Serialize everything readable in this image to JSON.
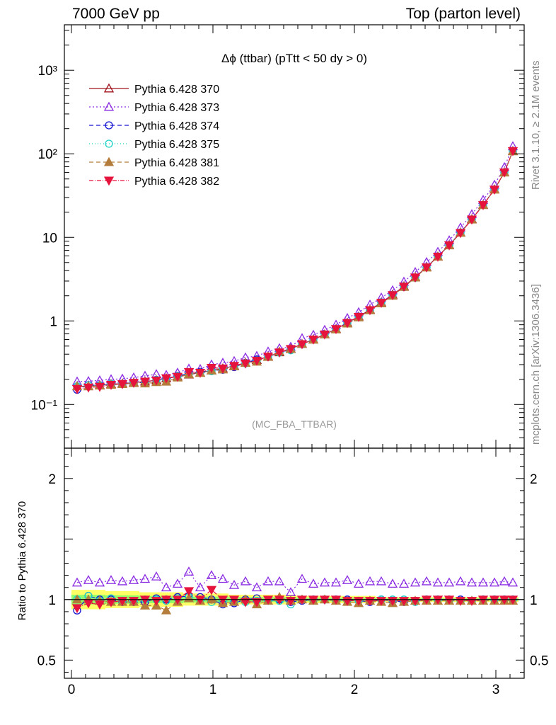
{
  "header": {
    "left": "7000 GeV pp",
    "right": "Top (parton level)"
  },
  "side_labels": {
    "rivet": "Rivet 3.1.10, ≥ 2.1M events",
    "source": "mcplots.cern.ch [arXiv:1306.3436]"
  },
  "colors": {
    "s370": "#a0141e",
    "s373": "#8a2be2",
    "s374": "#1414d2",
    "s375": "#1ed2c8",
    "s381": "#b47d3c",
    "s382": "#e6143c",
    "band_outer": "#ffff66",
    "band_inner": "#99ff66"
  },
  "chart_data": [
    {
      "type": "line",
      "title": "Δϕ (ttbar) (pTtt < 50 dy > 0)",
      "watermark": "(MC_FBA_TTBAR)",
      "yscale": "log",
      "xlim": [
        -0.05,
        3.2
      ],
      "ylim": [
        0.03,
        3500
      ],
      "x_ticks": [
        "0",
        "1",
        "2",
        "3"
      ],
      "y_ticks": [
        "10⁻¹",
        "1",
        "10",
        "10²",
        "10³"
      ],
      "legend_position": "top-left",
      "x": [
        0.04,
        0.12,
        0.2,
        0.28,
        0.36,
        0.44,
        0.52,
        0.6,
        0.67,
        0.75,
        0.83,
        0.91,
        0.99,
        1.07,
        1.15,
        1.23,
        1.31,
        1.39,
        1.47,
        1.55,
        1.63,
        1.71,
        1.79,
        1.87,
        1.95,
        2.03,
        2.11,
        2.19,
        2.27,
        2.35,
        2.43,
        2.51,
        2.59,
        2.67,
        2.75,
        2.83,
        2.91,
        2.99,
        3.06,
        3.12
      ],
      "series": [
        {
          "name": "Pythia 6.428 370",
          "key": "s370",
          "marker": "triangle-open",
          "dash": "",
          "values": [
            0.165,
            0.165,
            0.17,
            0.175,
            0.178,
            0.183,
            0.188,
            0.195,
            0.205,
            0.215,
            0.228,
            0.24,
            0.255,
            0.27,
            0.29,
            0.315,
            0.34,
            0.375,
            0.42,
            0.465,
            0.53,
            0.6,
            0.69,
            0.8,
            0.95,
            1.13,
            1.36,
            1.66,
            2.06,
            2.6,
            3.35,
            4.4,
            5.9,
            8.1,
            11.4,
            16.5,
            24.5,
            37.5,
            60.0,
            108
          ]
        },
        {
          "name": "Pythia 6.428 373",
          "key": "s373",
          "marker": "triangle-open",
          "dash": "2,3",
          "values": [
            0.188,
            0.19,
            0.194,
            0.2,
            0.203,
            0.21,
            0.22,
            0.23,
            0.225,
            0.24,
            0.268,
            0.265,
            0.3,
            0.315,
            0.33,
            0.365,
            0.38,
            0.43,
            0.47,
            0.49,
            0.62,
            0.68,
            0.78,
            0.9,
            1.08,
            1.27,
            1.56,
            1.9,
            2.32,
            2.94,
            3.84,
            5.05,
            6.7,
            9.2,
            13.1,
            18.9,
            28.0,
            42.5,
            69.0,
            123
          ]
        },
        {
          "name": "Pythia 6.428 374",
          "key": "s374",
          "marker": "circle-open",
          "dash": "6,4",
          "values": [
            0.15,
            0.17,
            0.17,
            0.175,
            0.175,
            0.18,
            0.185,
            0.197,
            0.205,
            0.22,
            0.235,
            0.245,
            0.255,
            0.26,
            0.28,
            0.315,
            0.345,
            0.37,
            0.42,
            0.455,
            0.525,
            0.6,
            0.69,
            0.8,
            0.95,
            1.12,
            1.34,
            1.67,
            2.05,
            2.54,
            3.3,
            4.4,
            5.9,
            8.1,
            11.4,
            16.4,
            24.4,
            37.4,
            60.0,
            108
          ]
        },
        {
          "name": "Pythia 6.428 375",
          "key": "s375",
          "marker": "circle-open",
          "dash": "1,3",
          "values": [
            0.165,
            0.17,
            0.168,
            0.177,
            0.176,
            0.182,
            0.188,
            0.196,
            0.203,
            0.218,
            0.232,
            0.24,
            0.25,
            0.268,
            0.285,
            0.31,
            0.337,
            0.372,
            0.418,
            0.445,
            0.528,
            0.595,
            0.688,
            0.795,
            0.945,
            1.12,
            1.35,
            1.66,
            2.05,
            2.6,
            3.28,
            4.38,
            5.88,
            8.05,
            11.3,
            16.4,
            24.4,
            37.4,
            60.0,
            108
          ]
        },
        {
          "name": "Pythia 6.428 381",
          "key": "s381",
          "marker": "triangle-filled",
          "dash": "6,4",
          "values": [
            0.165,
            0.165,
            0.168,
            0.172,
            0.175,
            0.18,
            0.178,
            0.185,
            0.187,
            0.21,
            0.23,
            0.238,
            0.255,
            0.262,
            0.285,
            0.315,
            0.325,
            0.37,
            0.43,
            0.46,
            0.53,
            0.595,
            0.69,
            0.79,
            0.93,
            1.1,
            1.34,
            1.62,
            2.0,
            2.55,
            3.3,
            4.35,
            5.85,
            8.0,
            11.3,
            16.3,
            24.3,
            37.2,
            59.5,
            107
          ]
        },
        {
          "name": "Pythia 6.428 382",
          "key": "s382",
          "marker": "triangle-down-filled",
          "dash": "6,2,1,2",
          "values": [
            0.153,
            0.16,
            0.163,
            0.172,
            0.176,
            0.182,
            0.188,
            0.194,
            0.206,
            0.215,
            0.245,
            0.24,
            0.275,
            0.27,
            0.29,
            0.31,
            0.335,
            0.375,
            0.42,
            0.462,
            0.528,
            0.6,
            0.69,
            0.8,
            0.945,
            1.12,
            1.35,
            1.65,
            2.04,
            2.58,
            3.32,
            4.38,
            5.88,
            8.05,
            11.3,
            16.4,
            24.4,
            37.4,
            60.0,
            108
          ]
        }
      ]
    },
    {
      "type": "line",
      "ylabel": "Ratio to Pythia 6.428 370",
      "xlim": [
        -0.05,
        3.2
      ],
      "ylim": [
        0.35,
        2.25
      ],
      "x_ticks": [
        "0",
        "1",
        "2",
        "3"
      ],
      "y_ticks": [
        "0.5",
        "1",
        "2"
      ],
      "x": [
        0.04,
        0.12,
        0.2,
        0.28,
        0.36,
        0.44,
        0.52,
        0.6,
        0.67,
        0.75,
        0.83,
        0.91,
        0.99,
        1.07,
        1.15,
        1.23,
        1.31,
        1.39,
        1.47,
        1.55,
        1.63,
        1.71,
        1.79,
        1.87,
        1.95,
        2.03,
        2.11,
        2.19,
        2.27,
        2.35,
        2.43,
        2.51,
        2.59,
        2.67,
        2.75,
        2.83,
        2.91,
        2.99,
        3.06,
        3.12
      ],
      "band_outer_halfwidth": [
        0.08,
        0.08,
        0.08,
        0.07,
        0.07,
        0.07,
        0.06,
        0.06,
        0.06,
        0.06,
        0.05,
        0.05,
        0.05,
        0.05,
        0.04,
        0.04,
        0.04,
        0.04,
        0.04,
        0.04,
        0.03,
        0.03,
        0.03,
        0.03,
        0.03,
        0.03,
        0.03,
        0.02,
        0.02,
        0.02,
        0.02,
        0.02,
        0.02,
        0.02,
        0.02,
        0.02,
        0.02,
        0.02,
        0.02,
        0.02
      ],
      "band_inner_halfwidth": [
        0.04,
        0.04,
        0.04,
        0.035,
        0.035,
        0.035,
        0.03,
        0.03,
        0.03,
        0.03,
        0.025,
        0.025,
        0.025,
        0.025,
        0.02,
        0.02,
        0.02,
        0.02,
        0.02,
        0.02,
        0.015,
        0.015,
        0.015,
        0.015,
        0.015,
        0.015,
        0.015,
        0.01,
        0.01,
        0.01,
        0.01,
        0.01,
        0.01,
        0.01,
        0.01,
        0.01,
        0.01,
        0.01,
        0.01,
        0.01
      ],
      "series": [
        {
          "name": "Pythia 6.428 370",
          "key": "s370",
          "marker": "none",
          "dash": "",
          "values": [
            1,
            1,
            1,
            1,
            1,
            1,
            1,
            1,
            1,
            1,
            1,
            1,
            1,
            1,
            1,
            1,
            1,
            1,
            1,
            1,
            1,
            1,
            1,
            1,
            1,
            1,
            1,
            1,
            1,
            1,
            1,
            1,
            1,
            1,
            1,
            1,
            1,
            1,
            1,
            1
          ]
        },
        {
          "name": "Pythia 6.428 373",
          "key": "s373",
          "marker": "triangle-open",
          "dash": "2,3",
          "values": [
            1.14,
            1.16,
            1.14,
            1.16,
            1.15,
            1.16,
            1.17,
            1.19,
            1.1,
            1.13,
            1.23,
            1.1,
            1.2,
            1.17,
            1.12,
            1.15,
            1.1,
            1.15,
            1.15,
            1.06,
            1.17,
            1.13,
            1.14,
            1.14,
            1.16,
            1.13,
            1.15,
            1.15,
            1.13,
            1.13,
            1.14,
            1.15,
            1.14,
            1.14,
            1.15,
            1.14,
            1.14,
            1.14,
            1.15,
            1.14
          ]
        },
        {
          "name": "Pythia 6.428 374",
          "key": "s374",
          "marker": "circle-open",
          "dash": "6,4",
          "values": [
            0.91,
            1.03,
            1.0,
            1.0,
            0.98,
            0.98,
            0.98,
            1.01,
            1.0,
            1.02,
            1.03,
            1.02,
            1.0,
            0.96,
            0.97,
            1.0,
            1.01,
            0.99,
            1.0,
            0.98,
            0.99,
            1.0,
            1.0,
            1.0,
            1.0,
            0.99,
            0.98,
            1.0,
            0.99,
            0.98,
            0.99,
            1.0,
            1.0,
            1.0,
            1.0,
            0.99,
            1.0,
            1.0,
            1.0,
            1.0
          ]
        },
        {
          "name": "Pythia 6.428 375",
          "key": "s375",
          "marker": "circle-open",
          "dash": "1,3",
          "values": [
            1.0,
            1.03,
            0.99,
            1.01,
            0.99,
            0.99,
            1.0,
            1.0,
            0.99,
            1.01,
            1.02,
            1.0,
            0.98,
            0.99,
            0.98,
            0.98,
            0.99,
            0.99,
            0.99,
            0.96,
            1.0,
            0.99,
            1.0,
            0.99,
            0.99,
            0.99,
            0.99,
            1.0,
            1.0,
            1.0,
            0.98,
            1.0,
            1.0,
            0.99,
            0.99,
            0.99,
            1.0,
            1.0,
            1.0,
            1.0
          ]
        },
        {
          "name": "Pythia 6.428 381",
          "key": "s381",
          "marker": "triangle-filled",
          "dash": "6,4",
          "values": [
            1.0,
            1.0,
            0.99,
            0.98,
            0.98,
            0.98,
            0.95,
            0.95,
            0.91,
            0.98,
            1.01,
            0.99,
            1.0,
            0.97,
            0.98,
            1.0,
            0.96,
            0.99,
            1.02,
            0.99,
            1.0,
            0.99,
            1.0,
            0.99,
            0.98,
            0.97,
            0.99,
            0.98,
            0.97,
            0.98,
            0.99,
            0.99,
            0.99,
            0.99,
            0.99,
            0.99,
            0.99,
            0.99,
            0.99,
            0.99
          ]
        },
        {
          "name": "Pythia 6.428 382",
          "key": "s382",
          "marker": "triangle-down-filled",
          "dash": "6,2,1,2",
          "values": [
            0.93,
            0.97,
            0.96,
            0.98,
            0.99,
            0.99,
            1.0,
            0.99,
            1.0,
            1.0,
            1.07,
            1.0,
            1.08,
            1.0,
            1.0,
            0.98,
            0.98,
            1.0,
            1.0,
            0.99,
            1.0,
            1.0,
            1.0,
            1.0,
            0.99,
            0.99,
            0.99,
            0.99,
            0.99,
            0.99,
            0.99,
            1.0,
            1.0,
            1.0,
            0.99,
            0.99,
            1.0,
            1.0,
            1.0,
            1.0
          ]
        }
      ]
    }
  ]
}
